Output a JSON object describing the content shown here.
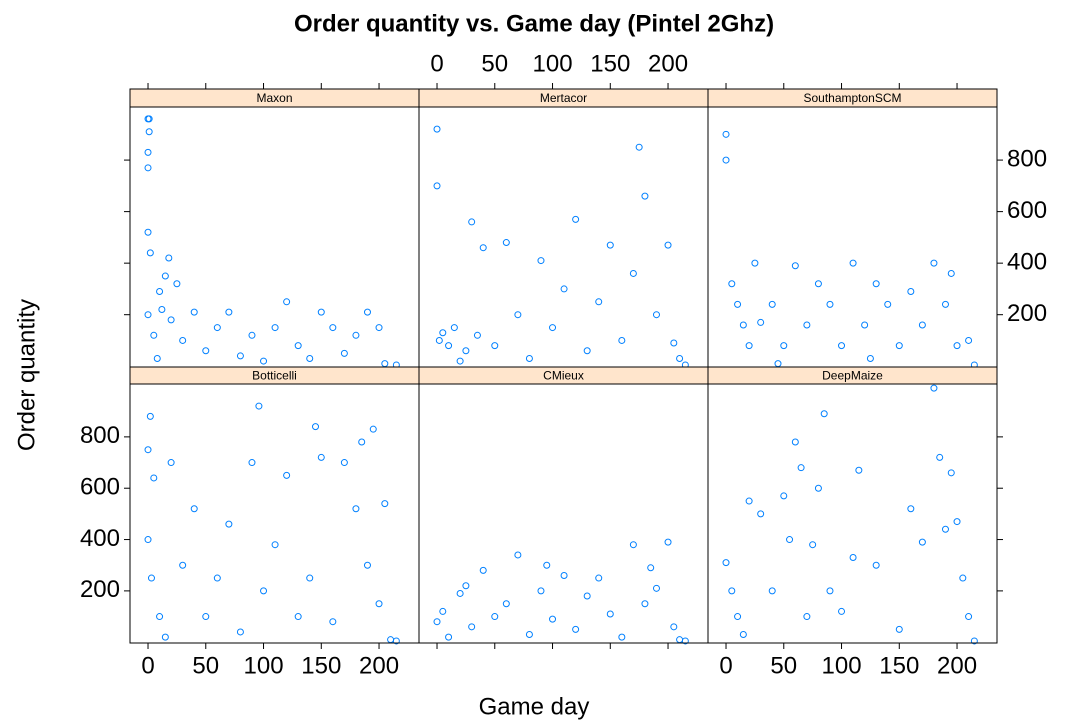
{
  "chart_data": {
    "type": "scatter",
    "title": "Order quantity vs. Game day (Pintel 2Ghz)",
    "xlabel": "Game day",
    "ylabel": "Order quantity",
    "color": "#0080ff",
    "xlim": [
      -15.6,
      234.6
    ],
    "ylim": [
      -3,
      1006
    ],
    "xticks": [
      0,
      50,
      100,
      150,
      200
    ],
    "yticks": [
      200,
      400,
      600,
      800
    ],
    "panels": [
      {
        "name": "Maxon",
        "x": [
          0,
          1,
          0,
          1,
          0,
          0,
          0,
          2,
          5,
          8,
          10,
          12,
          15,
          18,
          20,
          25,
          30,
          40,
          50,
          60,
          70,
          80,
          90,
          100,
          110,
          120,
          130,
          140,
          150,
          160,
          170,
          180,
          190,
          200,
          205,
          215
        ],
        "y": [
          960,
          960,
          770,
          910,
          830,
          520,
          200,
          440,
          120,
          30,
          290,
          220,
          350,
          420,
          180,
          320,
          100,
          210,
          60,
          150,
          210,
          40,
          120,
          20,
          150,
          250,
          80,
          30,
          210,
          150,
          50,
          120,
          210,
          150,
          10,
          5
        ]
      },
      {
        "name": "Mertacor",
        "x": [
          0,
          0,
          2,
          5,
          10,
          15,
          20,
          25,
          30,
          35,
          40,
          50,
          60,
          70,
          80,
          90,
          100,
          110,
          120,
          130,
          140,
          150,
          160,
          170,
          175,
          180,
          190,
          200,
          205,
          210,
          215
        ],
        "y": [
          920,
          700,
          100,
          130,
          80,
          150,
          20,
          60,
          560,
          120,
          460,
          80,
          480,
          200,
          30,
          410,
          150,
          300,
          570,
          60,
          250,
          470,
          100,
          360,
          850,
          660,
          200,
          470,
          90,
          30,
          5
        ]
      },
      {
        "name": "SouthamptonSCM",
        "x": [
          0,
          0,
          5,
          10,
          15,
          20,
          25,
          30,
          40,
          50,
          60,
          70,
          80,
          90,
          100,
          110,
          120,
          130,
          140,
          150,
          160,
          170,
          180,
          190,
          200,
          210,
          215,
          45,
          125,
          195
        ],
        "y": [
          900,
          800,
          320,
          240,
          160,
          80,
          400,
          170,
          240,
          80,
          390,
          160,
          320,
          240,
          80,
          400,
          160,
          320,
          240,
          80,
          290,
          160,
          400,
          240,
          80,
          100,
          5,
          10,
          30,
          360
        ]
      },
      {
        "name": "Botticelli",
        "x": [
          0,
          2,
          5,
          0,
          3,
          10,
          15,
          20,
          30,
          40,
          50,
          60,
          70,
          80,
          90,
          96,
          100,
          110,
          120,
          130,
          140,
          145,
          150,
          160,
          170,
          180,
          185,
          190,
          195,
          200,
          205,
          210,
          215
        ],
        "y": [
          750,
          880,
          640,
          400,
          250,
          100,
          20,
          700,
          300,
          520,
          100,
          250,
          460,
          40,
          700,
          920,
          200,
          380,
          650,
          100,
          250,
          840,
          720,
          80,
          700,
          520,
          780,
          300,
          830,
          150,
          540,
          10,
          5
        ]
      },
      {
        "name": "CMieux",
        "x": [
          0,
          5,
          10,
          20,
          30,
          40,
          50,
          60,
          70,
          80,
          90,
          100,
          110,
          120,
          130,
          140,
          150,
          160,
          170,
          180,
          190,
          200,
          205,
          210,
          215,
          25,
          95,
          185
        ],
        "y": [
          80,
          120,
          20,
          190,
          60,
          280,
          100,
          150,
          340,
          30,
          200,
          90,
          260,
          50,
          180,
          250,
          110,
          20,
          380,
          150,
          210,
          390,
          60,
          10,
          5,
          220,
          300,
          290
        ]
      },
      {
        "name": "DeepMaize",
        "x": [
          0,
          5,
          10,
          15,
          20,
          30,
          40,
          50,
          55,
          60,
          65,
          70,
          75,
          80,
          85,
          90,
          100,
          110,
          115,
          130,
          150,
          160,
          170,
          180,
          185,
          190,
          195,
          200,
          205,
          210,
          215
        ],
        "y": [
          310,
          200,
          100,
          30,
          550,
          500,
          200,
          570,
          400,
          780,
          680,
          100,
          380,
          600,
          890,
          200,
          120,
          330,
          670,
          300,
          50,
          520,
          390,
          990,
          720,
          440,
          660,
          470,
          250,
          100,
          5
        ]
      }
    ]
  }
}
